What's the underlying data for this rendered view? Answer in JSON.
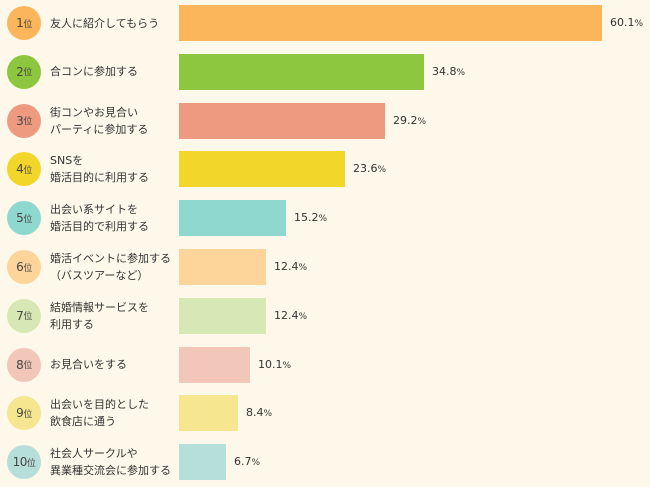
{
  "chart_data": {
    "type": "bar",
    "orientation": "horizontal",
    "unit": "%",
    "xlim": [
      0,
      60.1
    ],
    "grid": false,
    "legend": "none",
    "items": [
      {
        "rank": "1",
        "rank_suffix": "位",
        "label_lines": [
          "友人に紹介してもらう"
        ],
        "value": 60.1,
        "value_text": "60.1",
        "bar_color": "#fbb65b",
        "badge_color": "#fbb65b"
      },
      {
        "rank": "2",
        "rank_suffix": "位",
        "label_lines": [
          "合コンに参加する"
        ],
        "value": 34.8,
        "value_text": "34.8",
        "bar_color": "#8dc63f",
        "badge_color": "#8dc63f"
      },
      {
        "rank": "3",
        "rank_suffix": "位",
        "label_lines": [
          "街コンやお見合い",
          "パーティに参加する"
        ],
        "value": 29.2,
        "value_text": "29.2",
        "bar_color": "#ee9a80",
        "badge_color": "#ee9a80"
      },
      {
        "rank": "4",
        "rank_suffix": "位",
        "label_lines": [
          "SNSを",
          "婚活目的に利用する"
        ],
        "value": 23.6,
        "value_text": "23.6",
        "bar_color": "#f3d62a",
        "badge_color": "#f3d62a"
      },
      {
        "rank": "5",
        "rank_suffix": "位",
        "label_lines": [
          "出会い系サイトを",
          "婚活目的で利用する"
        ],
        "value": 15.2,
        "value_text": "15.2",
        "bar_color": "#8fd8cf",
        "badge_color": "#8fd8cf"
      },
      {
        "rank": "6",
        "rank_suffix": "位",
        "label_lines": [
          "婚活イベントに参加する",
          "（バスツアーなど）"
        ],
        "value": 12.4,
        "value_text": "12.4",
        "bar_color": "#fdd59a",
        "badge_color": "#fdd59a"
      },
      {
        "rank": "7",
        "rank_suffix": "位",
        "label_lines": [
          "結婚情報サービスを",
          "利用する"
        ],
        "value": 12.4,
        "value_text": "12.4",
        "bar_color": "#d7e8b4",
        "badge_color": "#d7e8b4"
      },
      {
        "rank": "8",
        "rank_suffix": "位",
        "label_lines": [
          "お見合いをする"
        ],
        "value": 10.1,
        "value_text": "10.1",
        "bar_color": "#f2c6b9",
        "badge_color": "#f2c6b9"
      },
      {
        "rank": "9",
        "rank_suffix": "位",
        "label_lines": [
          "出会いを目的とした",
          "飲食店に通う"
        ],
        "value": 8.4,
        "value_text": "8.4",
        "bar_color": "#f6e690",
        "badge_color": "#f6e690"
      },
      {
        "rank": "10",
        "rank_suffix": "位",
        "label_lines": [
          "社会人サークルや",
          "異業種交流会に参加する"
        ],
        "value": 6.7,
        "value_text": "6.7",
        "bar_color": "#b7dfd9",
        "badge_color": "#b7dfd9"
      }
    ]
  }
}
